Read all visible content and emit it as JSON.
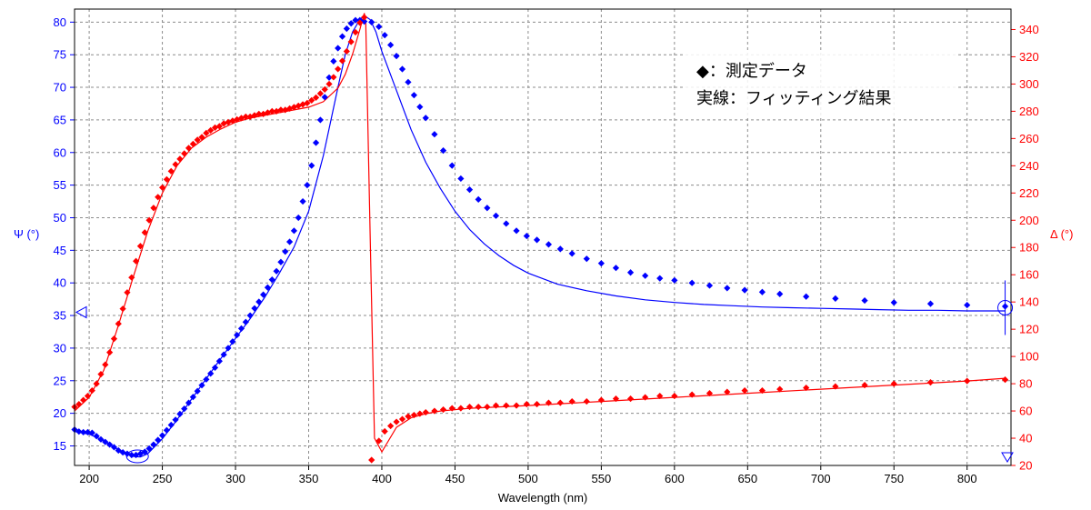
{
  "chart_data": {
    "type": "line",
    "xlabel": "Wavelength (nm)",
    "ylabel_left": "Ψ (°)",
    "ylabel_right": "Δ (°)",
    "xlim": [
      190,
      830
    ],
    "ylim_left": [
      12,
      82
    ],
    "ylim_right": [
      20,
      355
    ],
    "x_ticks": [
      200,
      250,
      300,
      350,
      400,
      450,
      500,
      550,
      600,
      650,
      700,
      750,
      800
    ],
    "y_left_ticks": [
      15,
      20,
      25,
      30,
      35,
      40,
      45,
      50,
      55,
      60,
      65,
      70,
      75,
      80
    ],
    "y_right_ticks": [
      20,
      40,
      60,
      80,
      100,
      120,
      140,
      160,
      180,
      200,
      220,
      240,
      260,
      280,
      300,
      320,
      340
    ],
    "grid": true,
    "legend": {
      "line1": "◆：測定データ",
      "line2": "実線：フィッティング結果",
      "position": "top-right"
    },
    "series": [
      {
        "name": "Ψ measured",
        "axis": "left",
        "style": "markers",
        "color": "#0000ff",
        "x": [
          190,
          193,
          196,
          199,
          202,
          205,
          208,
          211,
          214,
          217,
          220,
          223,
          226,
          229,
          232,
          235,
          238,
          241,
          244,
          247,
          250,
          253,
          256,
          259,
          262,
          265,
          268,
          271,
          274,
          277,
          280,
          283,
          286,
          289,
          292,
          295,
          298,
          301,
          304,
          307,
          310,
          313,
          316,
          319,
          322,
          325,
          328,
          331,
          334,
          337,
          340,
          343,
          346,
          349,
          352,
          355,
          358,
          361,
          364,
          367,
          370,
          373,
          376,
          379,
          382,
          385,
          388,
          393,
          398,
          402,
          406,
          410,
          414,
          418,
          422,
          426,
          430,
          436,
          442,
          448,
          454,
          460,
          466,
          472,
          478,
          485,
          492,
          499,
          506,
          514,
          522,
          530,
          540,
          550,
          560,
          570,
          580,
          590,
          600,
          612,
          624,
          636,
          648,
          660,
          672,
          690,
          710,
          730,
          750,
          775,
          800,
          826
        ],
        "y": [
          17.5,
          17.2,
          17.1,
          17.1,
          17.0,
          16.5,
          16.0,
          15.6,
          15.2,
          14.8,
          14.3,
          14.0,
          13.8,
          13.6,
          13.6,
          13.8,
          14.1,
          14.6,
          15.2,
          15.9,
          16.6,
          17.4,
          18.2,
          19.0,
          19.9,
          20.7,
          21.6,
          22.5,
          23.4,
          24.3,
          25.2,
          26.1,
          27.0,
          28.0,
          29.0,
          30.0,
          31.0,
          32.0,
          33.0,
          34.0,
          35.0,
          36.1,
          37.1,
          38.2,
          39.3,
          40.5,
          41.8,
          43.2,
          44.8,
          46.3,
          48.0,
          50.0,
          52.5,
          55.0,
          58.0,
          61.5,
          65.0,
          68.5,
          71.5,
          74.0,
          76.0,
          77.8,
          79.0,
          79.8,
          80.3,
          80.3,
          80.1,
          80.0,
          79.3,
          78.0,
          76.5,
          74.8,
          72.8,
          70.8,
          68.8,
          67.0,
          65.3,
          62.8,
          60.3,
          58.0,
          56.0,
          54.3,
          52.8,
          51.5,
          50.3,
          49.1,
          48.0,
          47.2,
          46.6,
          45.9,
          45.2,
          44.5,
          43.7,
          43.0,
          42.3,
          41.6,
          41.1,
          40.7,
          40.4,
          40.0,
          39.6,
          39.2,
          38.9,
          38.6,
          38.3,
          37.9,
          37.6,
          37.3,
          37.0,
          36.8,
          36.6,
          36.4
        ]
      },
      {
        "name": "Δ measured",
        "axis": "right",
        "style": "markers",
        "color": "#ff0000",
        "x": [
          190,
          193,
          196,
          199,
          202,
          205,
          208,
          211,
          214,
          217,
          220,
          223,
          226,
          229,
          232,
          235,
          238,
          241,
          244,
          247,
          250,
          253,
          256,
          259,
          262,
          265,
          268,
          271,
          274,
          277,
          280,
          283,
          286,
          289,
          292,
          295,
          298,
          301,
          304,
          307,
          310,
          313,
          316,
          319,
          322,
          325,
          328,
          331,
          334,
          337,
          340,
          343,
          346,
          349,
          352,
          355,
          358,
          361,
          364,
          367,
          370,
          373,
          376,
          379,
          382,
          385,
          388,
          393,
          398,
          402,
          406,
          410,
          414,
          418,
          422,
          426,
          430,
          436,
          442,
          448,
          454,
          460,
          466,
          472,
          478,
          485,
          492,
          499,
          506,
          514,
          522,
          530,
          540,
          550,
          560,
          570,
          580,
          590,
          600,
          612,
          624,
          636,
          648,
          660,
          672,
          690,
          710,
          730,
          750,
          775,
          800,
          826
        ],
        "y": [
          63,
          65,
          68,
          71,
          75,
          80,
          87,
          94,
          103,
          113,
          124,
          135,
          147,
          158,
          170,
          181,
          191,
          200,
          209,
          217,
          224,
          230,
          236,
          241,
          245,
          249,
          253,
          256,
          259,
          261,
          264,
          266,
          268,
          269,
          271,
          272,
          273,
          274,
          275,
          276,
          276,
          277,
          278,
          278,
          279,
          280,
          280,
          281,
          281,
          282,
          283,
          284,
          285,
          286,
          288,
          290,
          293,
          296,
          300,
          305,
          311,
          317,
          324,
          331,
          338,
          345,
          349,
          24,
          38,
          45,
          49,
          52,
          54,
          56,
          57,
          58,
          59,
          60,
          61,
          62,
          62,
          63,
          63,
          63,
          64,
          64,
          64,
          65,
          65,
          66,
          66,
          67,
          67,
          68,
          69,
          69,
          70,
          71,
          71,
          72,
          73,
          74,
          75,
          75,
          76,
          77,
          78,
          79,
          80,
          81,
          82,
          83
        ]
      },
      {
        "name": "Ψ fit",
        "axis": "left",
        "style": "line",
        "color": "#0000ff",
        "x": [
          190,
          200,
          210,
          220,
          230,
          235,
          240,
          250,
          260,
          270,
          280,
          290,
          300,
          310,
          320,
          330,
          340,
          350,
          360,
          370,
          375,
          380,
          385,
          388,
          392,
          396,
          400,
          410,
          420,
          430,
          440,
          450,
          460,
          470,
          480,
          490,
          500,
          520,
          540,
          560,
          580,
          600,
          620,
          640,
          660,
          680,
          700,
          720,
          740,
          760,
          780,
          800,
          826
        ],
        "y": [
          17.2,
          16.8,
          15.8,
          14.4,
          13.4,
          13.3,
          13.8,
          16.1,
          19.0,
          22.2,
          25.3,
          28.4,
          31.5,
          34.5,
          37.8,
          41.5,
          45.5,
          51.0,
          59.5,
          70.0,
          75.0,
          78.5,
          80.4,
          81.0,
          80.4,
          78.5,
          75.5,
          69.5,
          63.5,
          58.5,
          54.5,
          51.0,
          48.2,
          46.0,
          44.2,
          42.7,
          41.5,
          39.8,
          38.8,
          38.0,
          37.4,
          37.0,
          36.7,
          36.5,
          36.3,
          36.2,
          36.1,
          36.0,
          35.9,
          35.8,
          35.8,
          35.7,
          35.7
        ]
      },
      {
        "name": "Δ fit",
        "axis": "right",
        "style": "line",
        "color": "#ff0000",
        "x": [
          190,
          200,
          210,
          220,
          230,
          240,
          250,
          260,
          270,
          280,
          290,
          300,
          310,
          320,
          330,
          340,
          350,
          360,
          370,
          375,
          380,
          385,
          388,
          389,
          392,
          395,
          400,
          410,
          420,
          430,
          440,
          450,
          460,
          480,
          500,
          550,
          600,
          650,
          700,
          750,
          800,
          826
        ],
        "y": [
          60,
          70,
          90,
          123,
          158,
          192,
          220,
          240,
          253,
          261,
          267,
          272,
          275,
          277,
          279,
          281,
          283,
          287,
          297,
          307,
          322,
          340,
          352,
          345,
          190,
          40,
          30,
          48,
          55,
          58,
          60,
          61,
          62,
          63,
          64,
          67,
          70,
          73,
          76,
          79,
          82,
          84
        ]
      }
    ]
  }
}
